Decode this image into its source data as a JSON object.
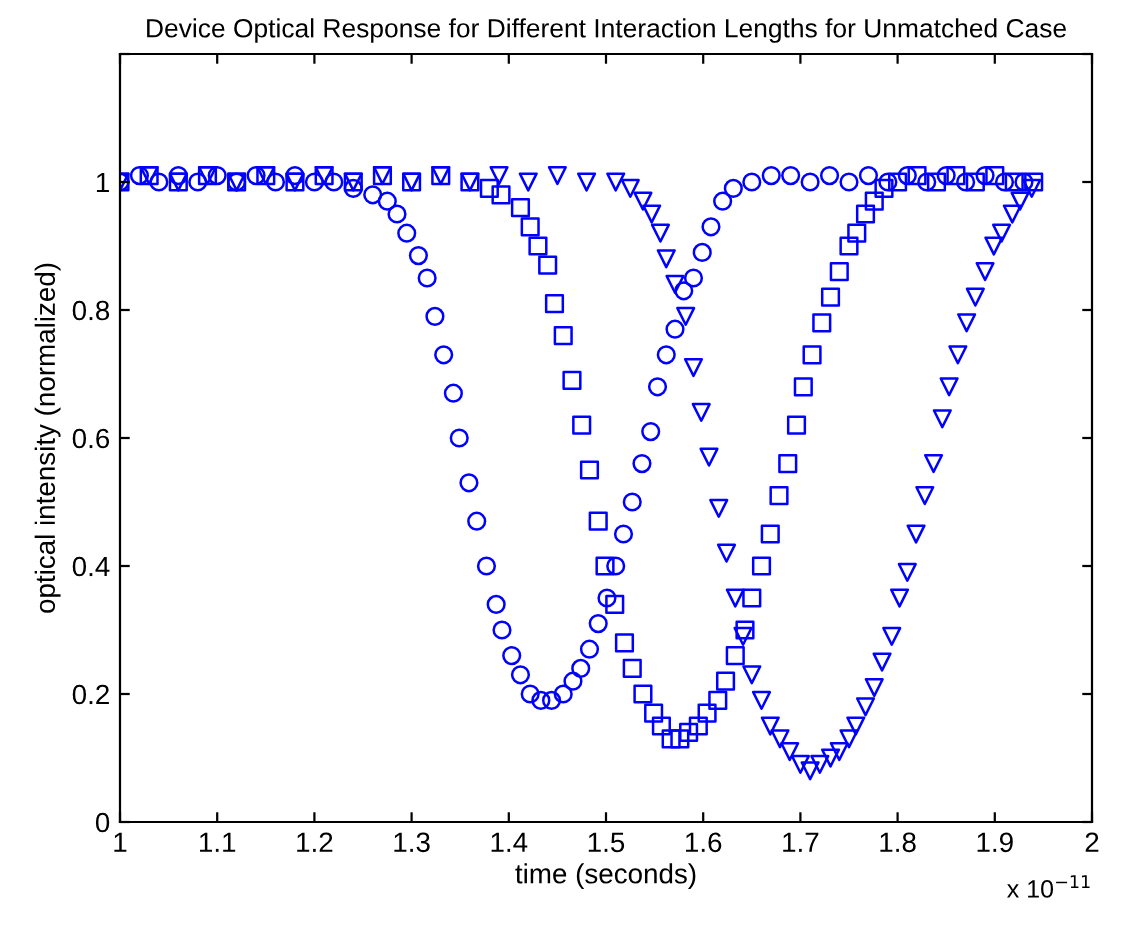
{
  "chart_data": {
    "type": "scatter",
    "title": "Device Optical Response for Different Interaction Lengths for Unmatched Case",
    "xlabel": "time (seconds)",
    "ylabel": "optical intensity (normalized)",
    "annotations": [
      "x 10$^{−11}$"
    ],
    "xlim": [
      1,
      2
    ],
    "xticks": [
      1,
      1.1,
      1.2,
      1.3,
      1.4,
      1.5,
      1.6,
      1.7,
      1.8,
      1.9,
      2
    ],
    "ylim": [
      0,
      1.2
    ],
    "yticks": [
      0,
      0.2,
      0.4,
      0.6,
      0.8,
      1,
      {
        "value": 1.2,
        "label": null
      }
    ],
    "grid": false,
    "legend": false,
    "series": [
      {
        "color": "#0000ff",
        "marker": "circle",
        "x": [
          1.0,
          1.02,
          1.04,
          1.06,
          1.08,
          1.1,
          1.12,
          1.14,
          1.16,
          1.18,
          1.2,
          1.22,
          1.24,
          1.26,
          1.275,
          1.285,
          1.295,
          1.307,
          1.316,
          1.324,
          1.333,
          1.343,
          1.349,
          1.359,
          1.367,
          1.377,
          1.387,
          1.393,
          1.403,
          1.412,
          1.422,
          1.433,
          1.444,
          1.456,
          1.466,
          1.474,
          1.483,
          1.492,
          1.501,
          1.51,
          1.518,
          1.527,
          1.537,
          1.546,
          1.553,
          1.562,
          1.571,
          1.58,
          1.59,
          1.599,
          1.608,
          1.62,
          1.631,
          1.65,
          1.67,
          1.69,
          1.71,
          1.73,
          1.75,
          1.77,
          1.79,
          1.81,
          1.83,
          1.85,
          1.87,
          1.89,
          1.91,
          1.93
        ],
        "values": [
          1.0,
          1.01,
          1.0,
          1.01,
          1.0,
          1.01,
          1.0,
          1.01,
          1.0,
          1.01,
          1.0,
          1.0,
          0.99,
          0.98,
          0.97,
          0.95,
          0.92,
          0.885,
          0.85,
          0.79,
          0.73,
          0.67,
          0.6,
          0.53,
          0.47,
          0.4,
          0.34,
          0.3,
          0.26,
          0.23,
          0.2,
          0.19,
          0.19,
          0.2,
          0.22,
          0.24,
          0.27,
          0.31,
          0.35,
          0.4,
          0.45,
          0.5,
          0.56,
          0.61,
          0.68,
          0.73,
          0.77,
          0.83,
          0.85,
          0.89,
          0.93,
          0.97,
          0.99,
          1.0,
          1.01,
          1.01,
          1.0,
          1.01,
          1.0,
          1.01,
          1.0,
          1.01,
          1.0,
          1.01,
          1.0,
          1.01,
          1.0,
          1.0
        ]
      },
      {
        "color": "#0000ff",
        "marker": "square",
        "x": [
          1.0,
          1.03,
          1.06,
          1.09,
          1.12,
          1.15,
          1.18,
          1.21,
          1.24,
          1.27,
          1.3,
          1.33,
          1.36,
          1.38,
          1.392,
          1.412,
          1.422,
          1.43,
          1.44,
          1.447,
          1.456,
          1.465,
          1.475,
          1.483,
          1.492,
          1.499,
          1.509,
          1.519,
          1.527,
          1.538,
          1.549,
          1.557,
          1.567,
          1.576,
          1.585,
          1.595,
          1.604,
          1.615,
          1.623,
          1.633,
          1.643,
          1.65,
          1.66,
          1.669,
          1.678,
          1.687,
          1.696,
          1.703,
          1.712,
          1.722,
          1.731,
          1.74,
          1.75,
          1.758,
          1.767,
          1.776,
          1.786,
          1.8,
          1.82,
          1.84,
          1.86,
          1.88,
          1.9,
          1.92,
          1.94
        ],
        "values": [
          1.0,
          1.01,
          1.0,
          1.01,
          1.0,
          1.01,
          1.0,
          1.01,
          1.0,
          1.01,
          1.0,
          1.01,
          1.0,
          0.99,
          0.98,
          0.96,
          0.93,
          0.9,
          0.87,
          0.81,
          0.76,
          0.69,
          0.62,
          0.55,
          0.47,
          0.4,
          0.34,
          0.28,
          0.24,
          0.2,
          0.17,
          0.15,
          0.13,
          0.13,
          0.14,
          0.15,
          0.17,
          0.19,
          0.22,
          0.26,
          0.3,
          0.35,
          0.4,
          0.45,
          0.51,
          0.56,
          0.62,
          0.68,
          0.73,
          0.78,
          0.82,
          0.86,
          0.9,
          0.92,
          0.95,
          0.97,
          0.99,
          1.0,
          1.01,
          1.0,
          1.01,
          1.0,
          1.01,
          1.0,
          1.0
        ]
      },
      {
        "color": "#0000ff",
        "marker": "triangle",
        "x": [
          1.0,
          1.03,
          1.06,
          1.09,
          1.12,
          1.15,
          1.18,
          1.21,
          1.24,
          1.27,
          1.3,
          1.33,
          1.36,
          1.39,
          1.42,
          1.45,
          1.48,
          1.51,
          1.525,
          1.538,
          1.547,
          1.556,
          1.562,
          1.571,
          1.582,
          1.59,
          1.598,
          1.606,
          1.616,
          1.624,
          1.633,
          1.641,
          1.65,
          1.66,
          1.669,
          1.679,
          1.689,
          1.7,
          1.71,
          1.72,
          1.731,
          1.74,
          1.75,
          1.757,
          1.767,
          1.776,
          1.784,
          1.794,
          1.802,
          1.81,
          1.819,
          1.828,
          1.837,
          1.846,
          1.853,
          1.862,
          1.871,
          1.88,
          1.89,
          1.899,
          1.907,
          1.918,
          1.926,
          1.938
        ],
        "values": [
          1.0,
          1.01,
          1.0,
          1.01,
          1.0,
          1.01,
          1.0,
          1.01,
          1.0,
          1.01,
          1.0,
          1.01,
          1.0,
          1.01,
          1.0,
          1.01,
          1.0,
          1.0,
          0.99,
          0.97,
          0.95,
          0.92,
          0.88,
          0.84,
          0.79,
          0.71,
          0.64,
          0.57,
          0.49,
          0.42,
          0.35,
          0.29,
          0.23,
          0.19,
          0.15,
          0.13,
          0.11,
          0.09,
          0.08,
          0.09,
          0.1,
          0.11,
          0.13,
          0.15,
          0.18,
          0.21,
          0.25,
          0.29,
          0.35,
          0.39,
          0.45,
          0.51,
          0.56,
          0.63,
          0.68,
          0.73,
          0.78,
          0.82,
          0.86,
          0.9,
          0.92,
          0.95,
          0.97,
          0.99
        ]
      }
    ]
  }
}
